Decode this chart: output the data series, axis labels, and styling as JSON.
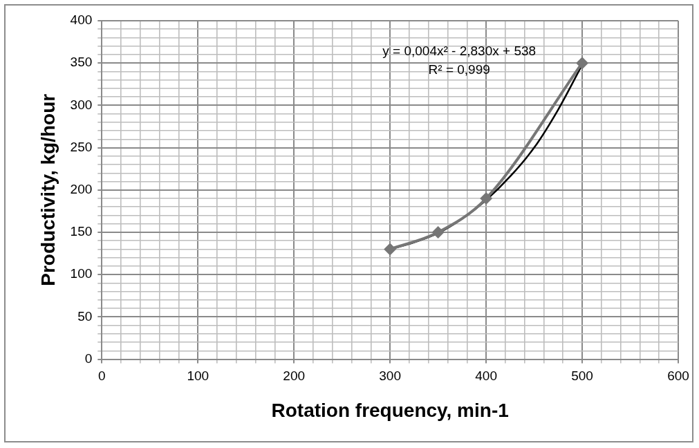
{
  "chart_data": {
    "type": "line",
    "xlabel": "Rotation frequency, min-1",
    "ylabel": "Productivity, kg/hour",
    "xlim": [
      0,
      600
    ],
    "ylim": [
      0,
      400
    ],
    "xticks": [
      0,
      {
        "value": 20,
        "label": null
      },
      {
        "value": 40,
        "label": null
      },
      {
        "value": 60,
        "label": null
      },
      {
        "value": 80,
        "label": null
      },
      100,
      {
        "value": 120,
        "label": null
      },
      {
        "value": 140,
        "label": null
      },
      {
        "value": 160,
        "label": null
      },
      {
        "value": 180,
        "label": null
      },
      200,
      {
        "value": 220,
        "label": null
      },
      {
        "value": 240,
        "label": null
      },
      {
        "value": 260,
        "label": null
      },
      {
        "value": 280,
        "label": null
      },
      300,
      {
        "value": 320,
        "label": null
      },
      {
        "value": 340,
        "label": null
      },
      {
        "value": 360,
        "label": null
      },
      {
        "value": 380,
        "label": null
      },
      400,
      {
        "value": 420,
        "label": null
      },
      {
        "value": 440,
        "label": null
      },
      {
        "value": 460,
        "label": null
      },
      {
        "value": 480,
        "label": null
      },
      500,
      {
        "value": 520,
        "label": null
      },
      {
        "value": 540,
        "label": null
      },
      {
        "value": 560,
        "label": null
      },
      {
        "value": 580,
        "label": null
      },
      600
    ],
    "yticks": [
      0,
      {
        "value": 10,
        "label": null
      },
      {
        "value": 20,
        "label": null
      },
      {
        "value": 30,
        "label": null
      },
      {
        "value": 40,
        "label": null
      },
      50,
      {
        "value": 60,
        "label": null
      },
      {
        "value": 70,
        "label": null
      },
      {
        "value": 80,
        "label": null
      },
      {
        "value": 90,
        "label": null
      },
      100,
      {
        "value": 110,
        "label": null
      },
      {
        "value": 120,
        "label": null
      },
      {
        "value": 130,
        "label": null
      },
      {
        "value": 140,
        "label": null
      },
      150,
      {
        "value": 160,
        "label": null
      },
      {
        "value": 170,
        "label": null
      },
      {
        "value": 180,
        "label": null
      },
      {
        "value": 190,
        "label": null
      },
      200,
      {
        "value": 210,
        "label": null
      },
      {
        "value": 220,
        "label": null
      },
      {
        "value": 230,
        "label": null
      },
      {
        "value": 240,
        "label": null
      },
      250,
      {
        "value": 260,
        "label": null
      },
      {
        "value": 270,
        "label": null
      },
      {
        "value": 280,
        "label": null
      },
      {
        "value": 290,
        "label": null
      },
      300,
      {
        "value": 310,
        "label": null
      },
      {
        "value": 320,
        "label": null
      },
      {
        "value": 330,
        "label": null
      },
      {
        "value": 340,
        "label": null
      },
      350,
      {
        "value": 360,
        "label": null
      },
      {
        "value": 370,
        "label": null
      },
      {
        "value": 380,
        "label": null
      },
      {
        "value": 390,
        "label": null
      },
      400
    ],
    "grid": true,
    "series": [
      {
        "color": "#767676",
        "marker": "diamond",
        "x": [
          300,
          350,
          400,
          500
        ],
        "values": [
          130,
          150,
          190,
          350
        ]
      },
      {
        "color": "#000000",
        "marker": "none",
        "x": [
          300,
          325,
          350,
          375,
          400,
          425,
          450,
          475,
          500
        ],
        "values": [
          130,
          138,
          149,
          166,
          188,
          216,
          250,
          295,
          348
        ]
      }
    ],
    "annotations": [
      "y = 0,004x² - 2,830x + 538",
      "R² = 0,999"
    ]
  }
}
